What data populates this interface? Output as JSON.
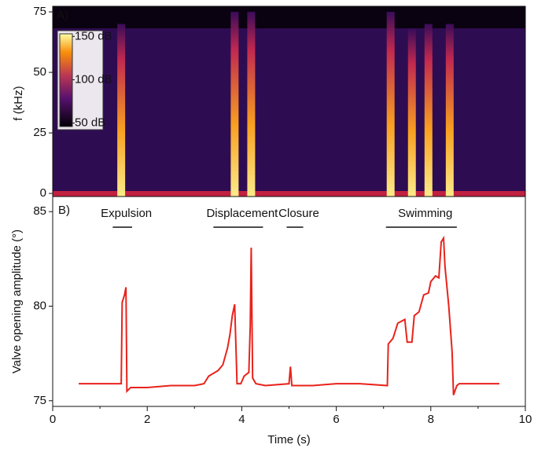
{
  "chart_data": [
    {
      "type": "spectrogram",
      "panel_label": "A)",
      "ylabel": "f (kHz)",
      "xlim": [
        0,
        10
      ],
      "ylim": [
        -2.9,
        77.3
      ],
      "yticks": [
        0,
        25,
        50,
        75
      ],
      "x": [
        1.45,
        3.85,
        4.2,
        7.15,
        7.6,
        7.95,
        8.4
      ],
      "values": [
        70,
        75,
        75,
        75,
        68,
        70,
        70
      ],
      "colorbar": {
        "lim": [
          46,
          153
        ],
        "ticks": [
          {
            "value": 150,
            "label": "150 dB"
          },
          {
            "value": 100,
            "label": "100 dB"
          },
          {
            "value": 50,
            "label": "50 dB"
          }
        ]
      }
    },
    {
      "type": "line",
      "panel_label": "B)",
      "xlabel": "Time (s)",
      "ylabel": "Valve opening amplitude (°)",
      "xlim": [
        0,
        10
      ],
      "ylim": [
        74.7,
        85.8
      ],
      "xticks": [
        0,
        2,
        4,
        6,
        8,
        10
      ],
      "xminorticks": [
        1,
        3,
        5,
        7,
        9
      ],
      "yticks": [
        75,
        80,
        85
      ],
      "annotations": [
        {
          "text": "Expulsion",
          "x": [
            1.27,
            1.68
          ]
        },
        {
          "text": "Displacement",
          "x": [
            3.4,
            4.45
          ]
        },
        {
          "text": "Closure",
          "x": [
            4.95,
            5.3
          ]
        },
        {
          "text": "Swimming",
          "x": [
            7.05,
            8.55
          ]
        }
      ],
      "series": [
        {
          "color": "#e8231b",
          "x": [
            0.55,
            1.45,
            1.47,
            1.52,
            1.55,
            1.57,
            1.65,
            2.0,
            2.5,
            3.0,
            3.2,
            3.3,
            3.5,
            3.6,
            3.7,
            3.75,
            3.8,
            3.85,
            3.88,
            3.9,
            3.98,
            4.05,
            4.15,
            4.18,
            4.2,
            4.23,
            4.3,
            4.5,
            5.0,
            5.03,
            5.06,
            5.5,
            6.0,
            6.5,
            7.08,
            7.1,
            7.2,
            7.3,
            7.45,
            7.5,
            7.6,
            7.65,
            7.75,
            7.85,
            7.95,
            8.0,
            8.1,
            8.17,
            8.22,
            8.27,
            8.3,
            8.38,
            8.45,
            8.48,
            8.55,
            8.6,
            9.0,
            9.45
          ],
          "values": [
            75.9,
            75.9,
            80.2,
            80.6,
            81.0,
            75.5,
            75.7,
            75.7,
            75.8,
            75.8,
            75.9,
            76.3,
            76.6,
            76.9,
            77.8,
            78.5,
            79.5,
            80.1,
            77.6,
            75.9,
            75.9,
            76.3,
            76.5,
            79.0,
            83.1,
            76.2,
            75.9,
            75.8,
            75.9,
            76.8,
            75.8,
            75.8,
            75.9,
            75.9,
            75.8,
            78.0,
            78.3,
            79.1,
            79.3,
            78.1,
            78.1,
            79.5,
            79.7,
            80.6,
            80.7,
            81.3,
            81.6,
            81.5,
            83.4,
            83.6,
            82.1,
            80.0,
            77.6,
            75.3,
            75.8,
            75.9,
            75.9,
            75.9
          ]
        }
      ]
    }
  ]
}
